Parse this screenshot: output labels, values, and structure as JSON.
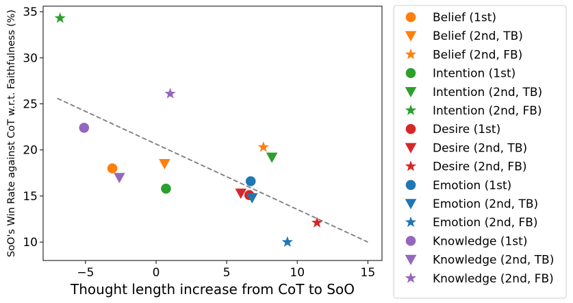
{
  "chart_data": {
    "type": "scatter",
    "xlabel": "Thought length increase from CoT to SoO",
    "ylabel": "SoO's Win Rate against CoT w.r.t. Faithfulness (%)",
    "xlim": [
      -8,
      16
    ],
    "ylim": [
      8,
      35.6
    ],
    "xticks": [
      -5,
      0,
      5,
      10,
      15
    ],
    "yticks": [
      10,
      15,
      20,
      25,
      30,
      35
    ],
    "grid": false,
    "legend_position": "outside-right",
    "trend_line": {
      "x": [
        -7,
        15
      ],
      "y": [
        25.6,
        10.0
      ],
      "style": "dashed",
      "color": "#808080"
    },
    "series": [
      {
        "name": "Belief (1st)",
        "color": "#ff7f0e",
        "marker": "circle",
        "x": -3.1,
        "y": 18.0
      },
      {
        "name": "Belief (2nd, TB)",
        "color": "#ff7f0e",
        "marker": "triangle-down",
        "x": 0.6,
        "y": 18.5
      },
      {
        "name": "Belief (2nd, FB)",
        "color": "#ff7f0e",
        "marker": "star",
        "x": 7.6,
        "y": 20.3
      },
      {
        "name": "Intention (1st)",
        "color": "#2ca02c",
        "marker": "circle",
        "x": 0.7,
        "y": 15.8
      },
      {
        "name": "Intention (2nd, TB)",
        "color": "#2ca02c",
        "marker": "triangle-down",
        "x": 8.2,
        "y": 19.2
      },
      {
        "name": "Intention (2nd, FB)",
        "color": "#2ca02c",
        "marker": "star",
        "x": -6.8,
        "y": 34.3
      },
      {
        "name": "Desire (1st)",
        "color": "#d62728",
        "marker": "circle",
        "x": 6.6,
        "y": 15.1
      },
      {
        "name": "Desire (2nd, TB)",
        "color": "#d62728",
        "marker": "triangle-down",
        "x": 6.0,
        "y": 15.3
      },
      {
        "name": "Desire (2nd, FB)",
        "color": "#d62728",
        "marker": "star",
        "x": 11.4,
        "y": 12.1
      },
      {
        "name": "Emotion (1st)",
        "color": "#1f77b4",
        "marker": "circle",
        "x": 6.7,
        "y": 16.6
      },
      {
        "name": "Emotion (2nd, TB)",
        "color": "#1f77b4",
        "marker": "triangle-down",
        "x": 6.8,
        "y": 14.8
      },
      {
        "name": "Emotion (2nd, FB)",
        "color": "#1f77b4",
        "marker": "star",
        "x": 9.3,
        "y": 10.0
      },
      {
        "name": "Knowledge (1st)",
        "color": "#9467bd",
        "marker": "circle",
        "x": -5.1,
        "y": 22.4
      },
      {
        "name": "Knowledge (2nd, TB)",
        "color": "#9467bd",
        "marker": "triangle-down",
        "x": -2.6,
        "y": 17.0
      },
      {
        "name": "Knowledge (2nd, FB)",
        "color": "#9467bd",
        "marker": "star",
        "x": 1.0,
        "y": 26.1
      }
    ]
  }
}
